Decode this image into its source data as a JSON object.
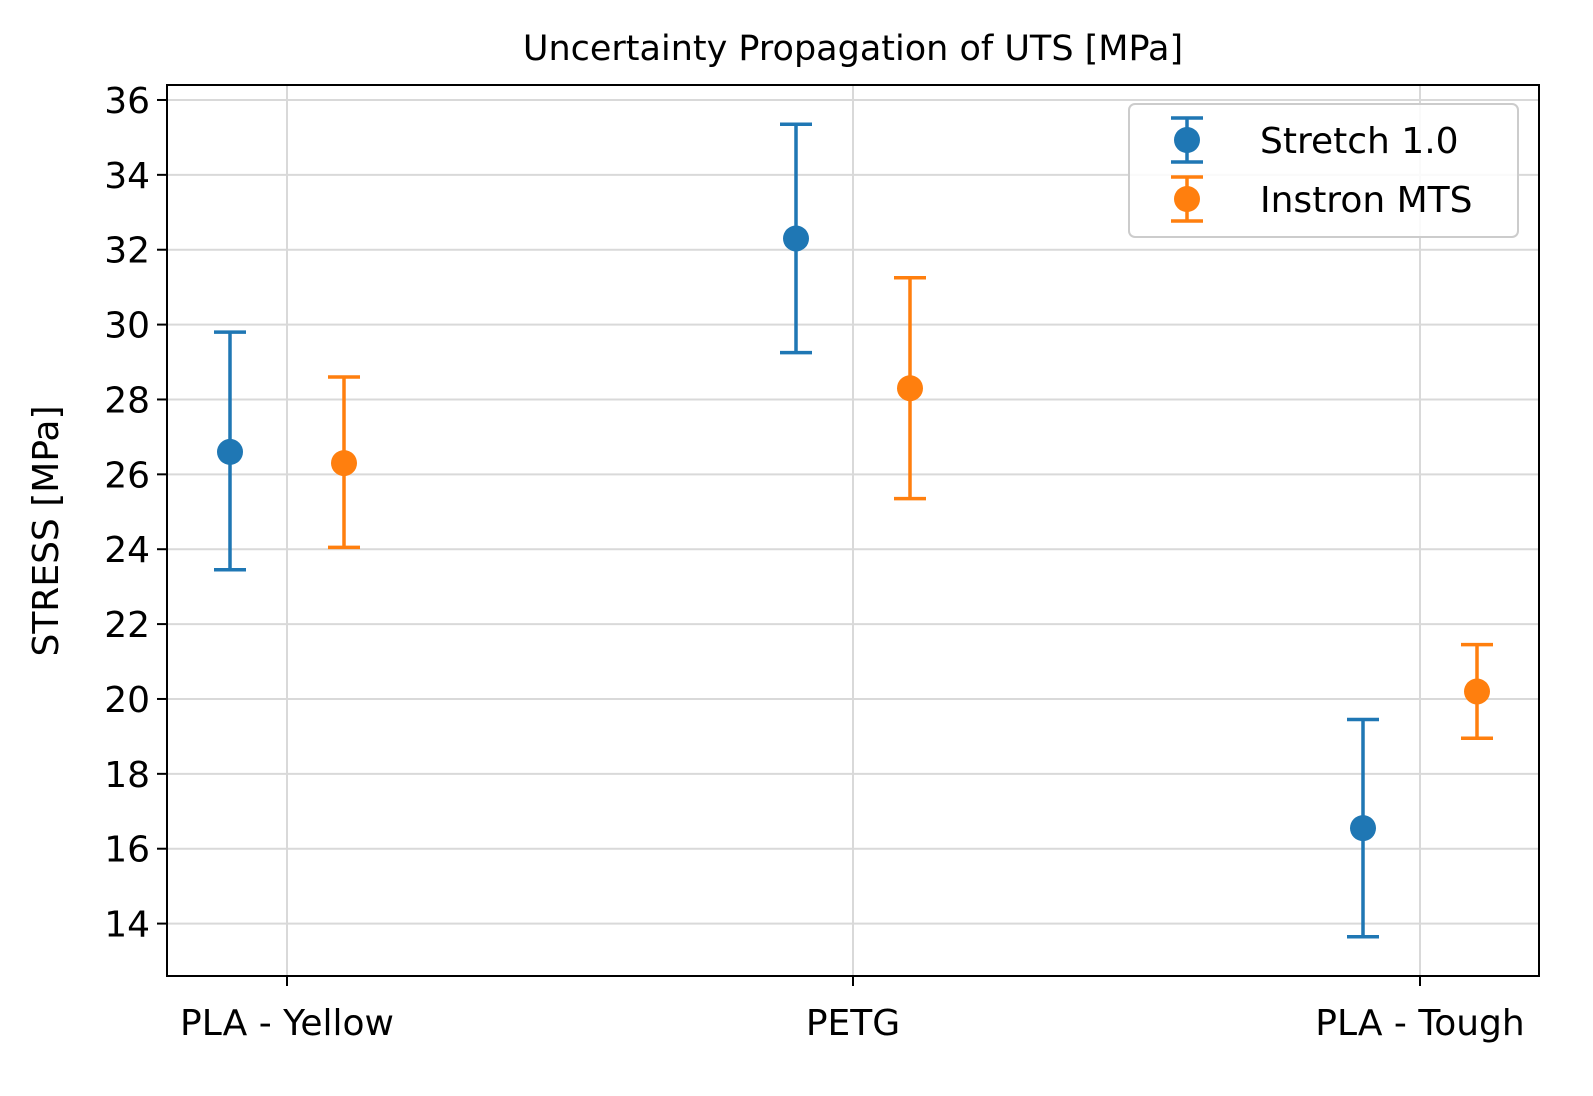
{
  "chart_data": {
    "type": "errorbar",
    "title": "Uncertainty Propagation of UTS [MPa]",
    "xlabel": "",
    "ylabel": "STRESS [MPa]",
    "categories": [
      "PLA - Yellow",
      "PETG",
      "PLA - Tough"
    ],
    "ylim": [
      12.6,
      36.4
    ],
    "yticks": [
      14,
      16,
      18,
      20,
      22,
      24,
      26,
      28,
      30,
      32,
      34,
      36
    ],
    "grid": true,
    "legend_position": "top-right",
    "series": [
      {
        "name": "Stretch 1.0",
        "color": "#1f77b4",
        "values": [
          26.6,
          32.3,
          16.55
        ],
        "lower": [
          23.45,
          29.25,
          13.65
        ],
        "upper": [
          29.8,
          35.35,
          19.45
        ]
      },
      {
        "name": "Instron MTS",
        "color": "#ff7f0e",
        "values": [
          26.3,
          28.3,
          20.2
        ],
        "lower": [
          24.05,
          25.35,
          18.95
        ],
        "upper": [
          28.6,
          31.25,
          21.45
        ]
      }
    ]
  }
}
